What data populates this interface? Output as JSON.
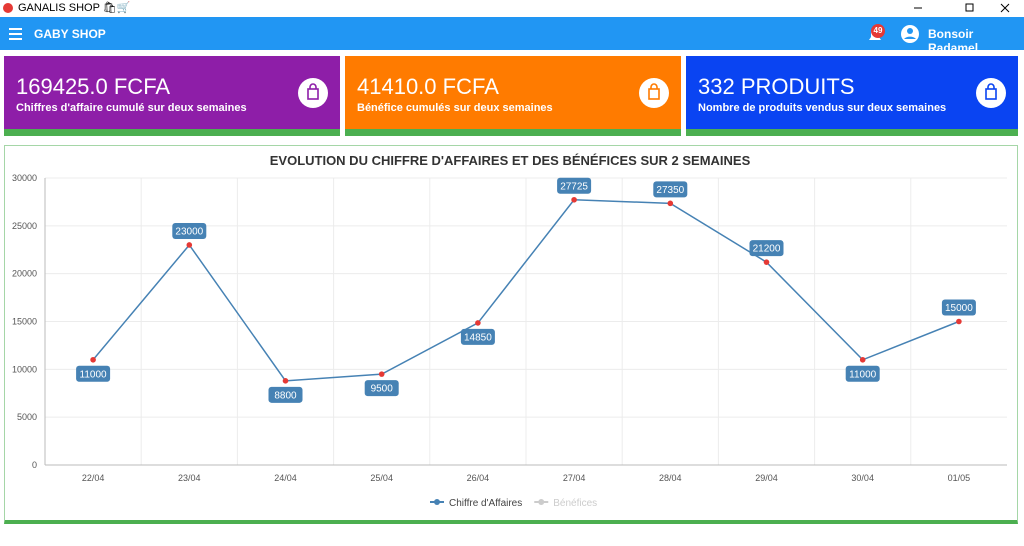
{
  "window": {
    "title": "GANALIS SHOP 🛍🛒"
  },
  "appbar": {
    "title": "GABY SHOP",
    "badge": "49",
    "user": "Bonsoir Radamel"
  },
  "cards": [
    {
      "value": "169425.0  FCFA",
      "caption": "Chiffres d'affaire cumulé sur deux semaines",
      "color": "#8e1ea8"
    },
    {
      "value": "41410.0  FCFA",
      "caption": "Bénéfice cumulés sur deux semaines",
      "color": "#ff7b00"
    },
    {
      "value": "332  PRODUITS",
      "caption": "Nombre de produits vendus sur deux semaines",
      "color": "#0a44f2"
    }
  ],
  "chart_data": {
    "type": "line",
    "title": "EVOLUTION DU CHIFFRE D'AFFAIRES ET DES BÉNÉFICES SUR 2 SEMAINES",
    "categories": [
      "22/04",
      "23/04",
      "24/04",
      "25/04",
      "26/04",
      "27/04",
      "28/04",
      "29/04",
      "30/04",
      "01/05"
    ],
    "series": [
      {
        "name": "Chiffre d'Affaires",
        "color": "#4682b4",
        "point_color": "#e53935",
        "values": [
          11000,
          23000,
          8800,
          9500,
          14850,
          27725,
          27350,
          21200,
          11000,
          15000
        ]
      },
      {
        "name": "Bénéfices",
        "color": "#cccccc",
        "hidden": true
      }
    ],
    "ylim": [
      0,
      30000
    ],
    "yticks": [
      0,
      5000,
      10000,
      15000,
      20000,
      25000,
      30000
    ],
    "grid": true
  }
}
